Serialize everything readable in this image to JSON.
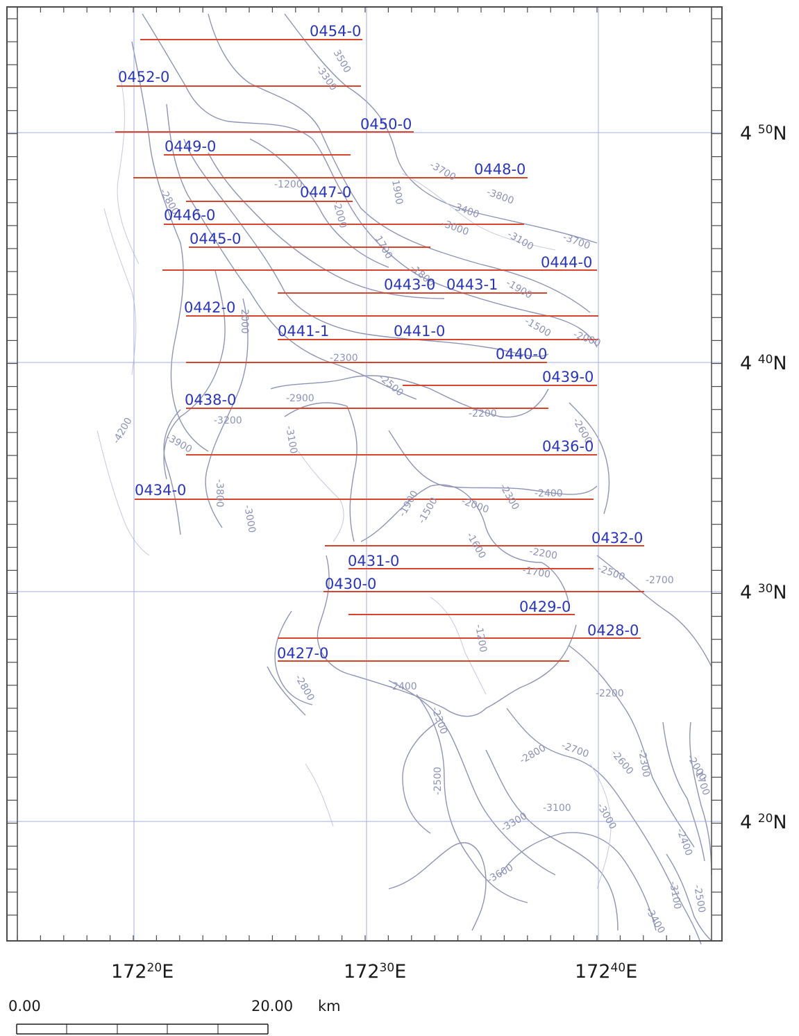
{
  "map": {
    "grid": true,
    "lon_labels": [
      {
        "deg": "172",
        "min": "20",
        "hemi": "E"
      },
      {
        "deg": "172",
        "min": "30",
        "hemi": "E"
      },
      {
        "deg": "172",
        "min": "40",
        "hemi": "E"
      }
    ],
    "lat_labels": [
      {
        "deg": "4",
        "min": "50",
        "hemi": "N"
      },
      {
        "deg": "4",
        "min": "40",
        "hemi": "N"
      },
      {
        "deg": "4",
        "min": "30",
        "hemi": "N"
      },
      {
        "deg": "4",
        "min": "20",
        "hemi": "N"
      }
    ],
    "track_labels": [
      "0454-0",
      "0452-0",
      "0450-0",
      "0449-0",
      "0448-0",
      "0447-0",
      "0446-0",
      "0445-0",
      "0444-0",
      "0443-0",
      "0443-1",
      "0442-0",
      "0441-1",
      "0441-0",
      "0440-0",
      "0439-0",
      "0438-0",
      "0436-0",
      "0434-0",
      "0432-0",
      "0431-0",
      "0430-0",
      "0429-0",
      "0428-0",
      "0427-0"
    ],
    "contour_labels": [
      "3500",
      "-3300",
      "-3700",
      "-3800",
      "-3400",
      "-3000",
      "-3100",
      "-3700",
      "-1200",
      "1900",
      "-2800",
      "-2000",
      "1700",
      "-1800",
      "-1900",
      "-1500",
      "-2000",
      "2000",
      "-2300",
      "-2500",
      "-2200",
      "-2600",
      "-2900",
      "-3200",
      "-3100",
      "-4200",
      "-3900",
      "-3800",
      "-3000",
      "-2400",
      "-2300",
      "-2000",
      "-1900",
      "-1500",
      "-1600",
      "-2200",
      "-2500",
      "-2700",
      "-1700",
      "-1200",
      "-2400",
      "-2300",
      "-2200",
      "-2800",
      "-2700",
      "-2600",
      "-2300",
      "-3100",
      "-3000",
      "-2500",
      "-3300",
      "-3600",
      "-2000",
      "-1700",
      "-2400",
      "-3100",
      "-3400",
      "-2500",
      "-2800"
    ],
    "colors": {
      "track": "#d8432c",
      "label": "#2a36b8",
      "grid": "#a6abdf",
      "contour": "#8f93b6",
      "frame": "#4a4a4a"
    }
  },
  "scale_bar": {
    "start": "0.00",
    "end": "20.00",
    "unit": "km"
  }
}
